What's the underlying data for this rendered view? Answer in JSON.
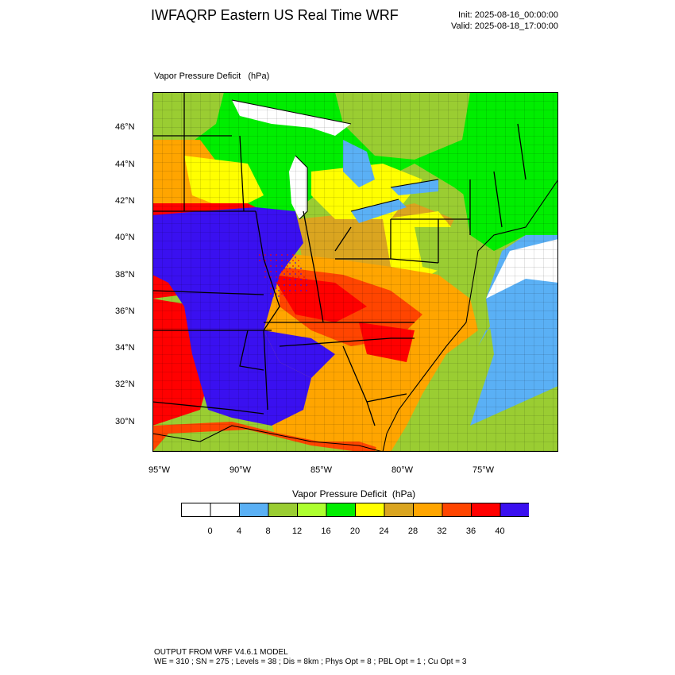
{
  "header": {
    "title": "IWFAQRP Eastern US Real Time WRF",
    "init": "Init: 2025-08-16_00:00:00",
    "valid": "Valid: 2025-08-18_17:00:00"
  },
  "map": {
    "title": "Vapor Pressure Deficit   (hPa)",
    "lat_labels": [
      "46°N",
      "44°N",
      "42°N",
      "40°N",
      "38°N",
      "36°N",
      "34°N",
      "32°N",
      "30°N"
    ],
    "lon_labels": [
      "95°W",
      "90°W",
      "85°W",
      "80°W",
      "75°W"
    ],
    "colors": {
      "water": "#ffffff",
      "lightblue": "#5ab0f5",
      "olive": "#9acd32",
      "yellowgreen": "#adff2f",
      "green": "#00ee00",
      "yellow": "#ffff00",
      "goldenrod": "#daa520",
      "orange": "#ffa500",
      "orangered": "#ff4500",
      "red": "#ff0000",
      "blue": "#3a10f0",
      "lines": "#000000"
    }
  },
  "colorbar": {
    "title": "Vapor Pressure Deficit  (hPa)",
    "ticks": [
      "0",
      "4",
      "8",
      "12",
      "16",
      "20",
      "24",
      "28",
      "32",
      "36",
      "40"
    ],
    "colors": [
      "#ffffff",
      "#ffffff",
      "#5ab0f5",
      "#9acd32",
      "#adff2f",
      "#00ee00",
      "#ffff00",
      "#daa520",
      "#ffa500",
      "#ff4500",
      "#ff0000",
      "#3a10f0"
    ]
  },
  "footer": {
    "line1": "OUTPUT FROM WRF V4.6.1 MODEL",
    "line2": "WE = 310 ; SN = 275 ; Levels = 38 ; Dis = 8km ; Phys Opt = 8 ; PBL Opt = 1 ; Cu Opt = 3"
  }
}
